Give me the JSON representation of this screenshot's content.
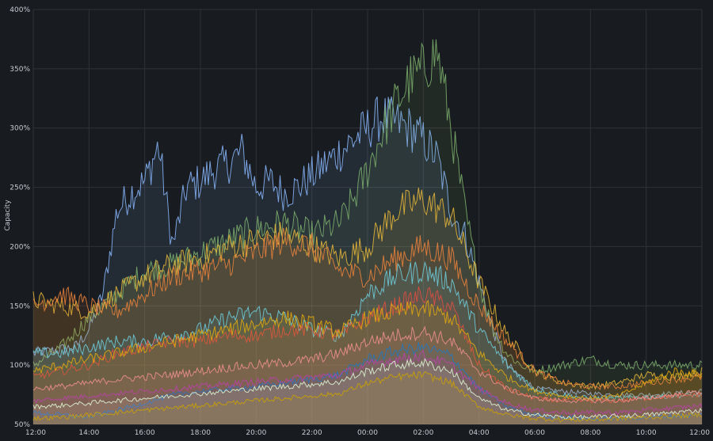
{
  "chart_data": {
    "type": "area",
    "title": "",
    "xlabel": "",
    "ylabel": "Capacity",
    "grid": true,
    "legend": "none",
    "x_ticks": [
      "12:00",
      "14:00",
      "16:00",
      "18:00",
      "20:00",
      "22:00",
      "00:00",
      "02:00",
      "04:00",
      "06:00",
      "08:00",
      "10:00",
      "12:00"
    ],
    "x_range_hours": [
      0,
      24
    ],
    "y_ticks": [
      "50%",
      "100%",
      "150%",
      "200%",
      "250%",
      "300%",
      "350%",
      "400%"
    ],
    "ylim": [
      50,
      400
    ],
    "y_unit": "%",
    "series": [
      {
        "color": "#8ab8ff",
        "x": [
          0,
          1.5,
          2,
          2.5,
          3,
          3.5,
          4,
          4.5,
          5,
          5.5,
          6,
          6.5,
          7,
          7.5,
          8,
          8.5,
          9,
          9.5,
          10,
          10.5,
          11,
          11.5,
          12,
          12.5,
          13,
          13.5,
          14,
          14.5,
          15,
          15.5,
          16,
          16.5,
          17,
          17.5,
          18,
          19,
          20,
          21,
          22,
          23,
          24
        ],
        "values": [
          110,
          115,
          130,
          160,
          230,
          245,
          255,
          285,
          200,
          250,
          255,
          265,
          270,
          280,
          250,
          255,
          245,
          250,
          260,
          270,
          280,
          290,
          300,
          310,
          305,
          300,
          290,
          275,
          230,
          210,
          170,
          130,
          100,
          90,
          80,
          78,
          76,
          75,
          75,
          76,
          78
        ]
      },
      {
        "color": "#7eb26d",
        "x": [
          0,
          1,
          2,
          3,
          4,
          5,
          6,
          7,
          8,
          9,
          10,
          11,
          11.5,
          12,
          12.5,
          13,
          13.5,
          14,
          14.5,
          15,
          15.5,
          16,
          16.5,
          17,
          17.5,
          18,
          19,
          20,
          21,
          22,
          23,
          24
        ],
        "values": [
          100,
          115,
          140,
          160,
          180,
          185,
          195,
          205,
          215,
          220,
          210,
          220,
          240,
          265,
          295,
          320,
          340,
          350,
          365,
          300,
          230,
          170,
          130,
          110,
          100,
          95,
          100,
          105,
          100,
          100,
          100,
          100
        ]
      },
      {
        "color": "#eab839",
        "x": [
          0,
          1,
          2,
          3,
          4,
          5,
          6,
          7,
          8,
          9,
          10,
          11,
          12,
          13,
          14,
          15,
          16,
          17,
          18,
          19,
          20,
          21,
          22,
          23,
          24
        ],
        "values": [
          155,
          150,
          145,
          160,
          175,
          185,
          190,
          200,
          205,
          210,
          200,
          190,
          200,
          230,
          240,
          225,
          170,
          125,
          95,
          85,
          82,
          85,
          92,
          90,
          95
        ]
      },
      {
        "color": "#ef843c",
        "x": [
          0,
          1,
          2,
          3,
          4,
          5,
          6,
          7,
          8,
          9,
          10,
          11,
          12,
          13,
          14,
          15,
          16,
          17,
          18,
          19,
          20,
          21,
          22,
          23,
          24
        ],
        "values": [
          150,
          160,
          150,
          145,
          160,
          175,
          180,
          185,
          195,
          205,
          200,
          180,
          175,
          190,
          200,
          190,
          150,
          120,
          95,
          85,
          82,
          82,
          85,
          88,
          90
        ]
      },
      {
        "color": "#6ed0e0",
        "x": [
          0,
          1,
          2,
          3,
          4,
          5,
          6,
          7,
          8,
          9,
          10,
          11,
          12,
          13,
          14,
          15,
          16,
          17,
          18,
          19,
          20,
          21,
          22,
          23,
          24
        ],
        "values": [
          110,
          110,
          115,
          120,
          120,
          125,
          130,
          140,
          145,
          140,
          130,
          125,
          160,
          175,
          180,
          170,
          130,
          100,
          80,
          75,
          72,
          72,
          73,
          74,
          75
        ]
      },
      {
        "color": "#e24d42",
        "x": [
          0,
          1,
          2,
          3,
          4,
          5,
          6,
          7,
          8,
          9,
          10,
          11,
          12,
          13,
          14,
          15,
          16,
          17,
          18,
          19,
          20,
          21,
          22,
          23,
          24
        ],
        "values": [
          90,
          95,
          100,
          110,
          115,
          120,
          120,
          125,
          125,
          130,
          130,
          125,
          140,
          150,
          160,
          150,
          100,
          80,
          72,
          70,
          70,
          70,
          72,
          74,
          75
        ]
      },
      {
        "color": "#e5ac0e",
        "x": [
          0,
          1,
          2,
          3,
          4,
          5,
          6,
          7,
          8,
          9,
          10,
          11,
          12,
          13,
          14,
          15,
          16,
          17,
          18,
          19,
          20,
          21,
          22,
          23,
          24
        ],
        "values": [
          95,
          100,
          105,
          110,
          115,
          120,
          125,
          130,
          135,
          140,
          135,
          128,
          140,
          145,
          148,
          140,
          110,
          90,
          78,
          74,
          72,
          74,
          85,
          95,
          92
        ]
      },
      {
        "color": "#f29191",
        "x": [
          0,
          1,
          2,
          3,
          4,
          5,
          6,
          7,
          8,
          9,
          10,
          11,
          12,
          13,
          14,
          15,
          16,
          17,
          18,
          19,
          20,
          21,
          22,
          23,
          24
        ],
        "values": [
          80,
          82,
          85,
          88,
          90,
          92,
          95,
          98,
          100,
          102,
          105,
          110,
          120,
          125,
          128,
          120,
          95,
          80,
          72,
          70,
          70,
          70,
          72,
          75,
          78
        ]
      },
      {
        "color": "#1f78c1",
        "x": [
          0,
          1,
          2,
          3,
          4,
          5,
          6,
          7,
          8,
          9,
          10,
          11,
          12,
          13,
          14,
          15,
          16,
          17,
          18,
          19,
          20,
          21,
          22,
          23,
          24
        ],
        "values": [
          60,
          58,
          56,
          62,
          68,
          75,
          78,
          80,
          82,
          85,
          88,
          92,
          105,
          112,
          115,
          108,
          80,
          65,
          58,
          56,
          55,
          55,
          56,
          57,
          58
        ]
      },
      {
        "color": "#ba43a9",
        "x": [
          0,
          1,
          2,
          3,
          4,
          5,
          6,
          7,
          8,
          9,
          10,
          11,
          12,
          13,
          14,
          15,
          16,
          17,
          18,
          19,
          20,
          21,
          22,
          23,
          24
        ],
        "values": [
          70,
          72,
          74,
          76,
          78,
          80,
          82,
          84,
          86,
          88,
          90,
          92,
          100,
          105,
          108,
          100,
          80,
          68,
          62,
          60,
          60,
          60,
          62,
          64,
          66
        ]
      },
      {
        "color": "#e0f9d7",
        "x": [
          0,
          1,
          2,
          3,
          4,
          5,
          6,
          7,
          8,
          9,
          10,
          11,
          12,
          13,
          14,
          15,
          16,
          17,
          18,
          19,
          20,
          21,
          22,
          23,
          24
        ],
        "values": [
          65,
          66,
          68,
          70,
          72,
          74,
          76,
          78,
          80,
          82,
          84,
          86,
          95,
          100,
          102,
          95,
          72,
          62,
          58,
          56,
          56,
          57,
          58,
          60,
          62
        ]
      },
      {
        "color": "#cca300",
        "x": [
          0,
          1,
          2,
          3,
          4,
          5,
          6,
          7,
          8,
          9,
          10,
          11,
          12,
          13,
          14,
          15,
          16,
          17,
          18,
          19,
          20,
          21,
          22,
          23,
          24
        ],
        "values": [
          55,
          56,
          58,
          60,
          62,
          64,
          66,
          68,
          70,
          72,
          74,
          76,
          85,
          90,
          92,
          85,
          65,
          58,
          55,
          54,
          54,
          55,
          56,
          57,
          58
        ]
      }
    ]
  }
}
